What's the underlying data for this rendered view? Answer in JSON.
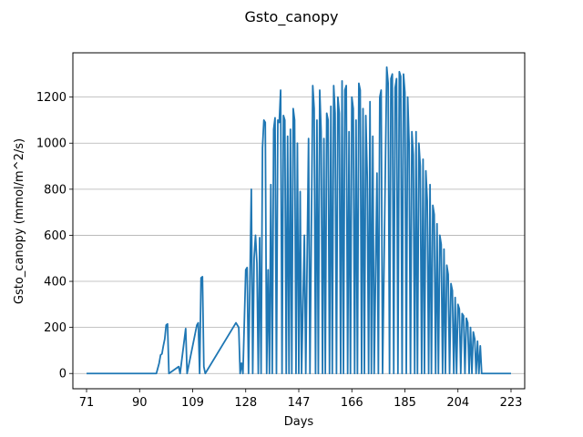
{
  "chart_data": {
    "type": "line",
    "title": "Gsto_canopy",
    "xlabel": "Days",
    "ylabel": "Gsto_canopy (mmol/m^2/s)",
    "x_ticks": [
      "71",
      "90",
      "109",
      "128",
      "147",
      "166",
      "185",
      "204",
      "223"
    ],
    "y_ticks": [
      "0",
      "200",
      "400",
      "600",
      "800",
      "1000",
      "1200"
    ],
    "xlim": [
      66.1,
      227.9
    ],
    "ylim": [
      -66.3,
      1392.3
    ],
    "grid": "y-major",
    "line_color": "#1f77b4",
    "series": [
      {
        "name": "",
        "baseline": 0,
        "points": [
          [
            71,
            0
          ],
          [
            96,
            0
          ],
          [
            97,
            45
          ],
          [
            97.5,
            80
          ],
          [
            98,
            85
          ],
          [
            98.5,
            120
          ],
          [
            99,
            150
          ],
          [
            99.5,
            210
          ],
          [
            100,
            215
          ],
          [
            100.5,
            0
          ],
          [
            104,
            30
          ],
          [
            104.5,
            0
          ],
          [
            106.5,
            195
          ],
          [
            107,
            0
          ],
          [
            110,
            180
          ],
          [
            110.5,
            210
          ],
          [
            111,
            220
          ],
          [
            111.5,
            0
          ],
          [
            112,
            415
          ],
          [
            112.5,
            420
          ],
          [
            113,
            30
          ],
          [
            113.5,
            0
          ],
          [
            124.5,
            220
          ],
          [
            125,
            210
          ],
          [
            125.5,
            200
          ],
          [
            126,
            0
          ],
          [
            126.5,
            45
          ],
          [
            127,
            0
          ],
          [
            128,
            450
          ],
          [
            128.5,
            460
          ],
          [
            129,
            0
          ],
          [
            130,
            800
          ],
          [
            130.5,
            0
          ],
          [
            131,
            500
          ],
          [
            131.5,
            600
          ],
          [
            132,
            480
          ],
          [
            132.5,
            0
          ],
          [
            133,
            590
          ],
          [
            133.5,
            0
          ],
          [
            134,
            980
          ],
          [
            134.5,
            1100
          ],
          [
            135,
            1090
          ],
          [
            135.5,
            0
          ],
          [
            136,
            450
          ],
          [
            136.5,
            0
          ],
          [
            137,
            820
          ],
          [
            137.5,
            0
          ],
          [
            138,
            1060
          ],
          [
            138.5,
            1110
          ],
          [
            139,
            0
          ],
          [
            139.5,
            1100
          ],
          [
            140,
            1090
          ],
          [
            140.5,
            1230
          ],
          [
            141,
            0
          ],
          [
            141.5,
            1120
          ],
          [
            142,
            1100
          ],
          [
            142.5,
            0
          ],
          [
            143,
            1030
          ],
          [
            143.5,
            0
          ],
          [
            144,
            1060
          ],
          [
            144.5,
            0
          ],
          [
            145,
            1150
          ],
          [
            145.5,
            1100
          ],
          [
            146,
            0
          ],
          [
            146.5,
            1000
          ],
          [
            147,
            0
          ],
          [
            147.5,
            790
          ],
          [
            148,
            0
          ],
          [
            149,
            600
          ],
          [
            149.5,
            0
          ],
          [
            150.5,
            1020
          ],
          [
            151,
            0
          ],
          [
            152,
            1250
          ],
          [
            152.5,
            1150
          ],
          [
            153,
            0
          ],
          [
            153.5,
            1100
          ],
          [
            154,
            0
          ],
          [
            154.5,
            1230
          ],
          [
            155,
            1050
          ],
          [
            155.5,
            0
          ],
          [
            156,
            1020
          ],
          [
            156.5,
            0
          ],
          [
            157,
            1130
          ],
          [
            157.5,
            1100
          ],
          [
            158,
            0
          ],
          [
            158.5,
            1160
          ],
          [
            159,
            0
          ],
          [
            159.5,
            1250
          ],
          [
            160,
            1130
          ],
          [
            160.5,
            0
          ],
          [
            161,
            1200
          ],
          [
            161.5,
            1130
          ],
          [
            162,
            0
          ],
          [
            162.5,
            1270
          ],
          [
            163,
            0
          ],
          [
            163.5,
            1230
          ],
          [
            164,
            1250
          ],
          [
            164.5,
            0
          ],
          [
            165,
            1050
          ],
          [
            165.5,
            0
          ],
          [
            166,
            1200
          ],
          [
            166.5,
            1150
          ],
          [
            167,
            0
          ],
          [
            167.5,
            1100
          ],
          [
            168,
            0
          ],
          [
            168.5,
            1260
          ],
          [
            169,
            1230
          ],
          [
            169.5,
            0
          ],
          [
            170,
            1150
          ],
          [
            170.5,
            0
          ],
          [
            171,
            1120
          ],
          [
            171.5,
            860
          ],
          [
            172,
            0
          ],
          [
            172.5,
            1180
          ],
          [
            173,
            0
          ],
          [
            173.5,
            1030
          ],
          [
            174,
            0
          ],
          [
            175,
            870
          ],
          [
            175.5,
            0
          ],
          [
            176,
            1200
          ],
          [
            176.5,
            1230
          ],
          [
            177,
            0
          ],
          [
            178.5,
            1330
          ],
          [
            179,
            1260
          ],
          [
            179.5,
            0
          ],
          [
            180,
            1280
          ],
          [
            180.5,
            1300
          ],
          [
            181,
            0
          ],
          [
            181.5,
            1240
          ],
          [
            182,
            1280
          ],
          [
            182.5,
            0
          ],
          [
            183,
            1310
          ],
          [
            183.5,
            1290
          ],
          [
            184,
            0
          ],
          [
            184.5,
            1300
          ],
          [
            185,
            1220
          ],
          [
            185.5,
            0
          ],
          [
            186,
            1200
          ],
          [
            186.5,
            1000
          ],
          [
            187,
            0
          ],
          [
            187.5,
            1050
          ],
          [
            188,
            950
          ],
          [
            188.5,
            0
          ],
          [
            189,
            1050
          ],
          [
            189.5,
            0
          ],
          [
            190,
            1000
          ],
          [
            190.5,
            900
          ],
          [
            191,
            0
          ],
          [
            191.5,
            930
          ],
          [
            192,
            0
          ],
          [
            192.5,
            880
          ],
          [
            193,
            750
          ],
          [
            193.5,
            0
          ],
          [
            194,
            820
          ],
          [
            194.5,
            0
          ],
          [
            195,
            730
          ],
          [
            195.5,
            690
          ],
          [
            196,
            0
          ],
          [
            196.5,
            650
          ],
          [
            197,
            0
          ],
          [
            197.5,
            600
          ],
          [
            198,
            560
          ],
          [
            198.5,
            0
          ],
          [
            199,
            540
          ],
          [
            199.5,
            0
          ],
          [
            200,
            470
          ],
          [
            200.5,
            430
          ],
          [
            201,
            0
          ],
          [
            201.5,
            390
          ],
          [
            202,
            360
          ],
          [
            202.5,
            0
          ],
          [
            203,
            330
          ],
          [
            203.5,
            0
          ],
          [
            204,
            300
          ],
          [
            204.5,
            280
          ],
          [
            205,
            0
          ],
          [
            205.5,
            260
          ],
          [
            206,
            250
          ],
          [
            206.5,
            0
          ],
          [
            207,
            240
          ],
          [
            207.5,
            220
          ],
          [
            208,
            0
          ],
          [
            208.5,
            200
          ],
          [
            209,
            0
          ],
          [
            209.5,
            180
          ],
          [
            210,
            150
          ],
          [
            210.5,
            0
          ],
          [
            211,
            140
          ],
          [
            211.5,
            0
          ],
          [
            212,
            120
          ],
          [
            212.5,
            0
          ],
          [
            223,
            0
          ]
        ]
      }
    ]
  }
}
